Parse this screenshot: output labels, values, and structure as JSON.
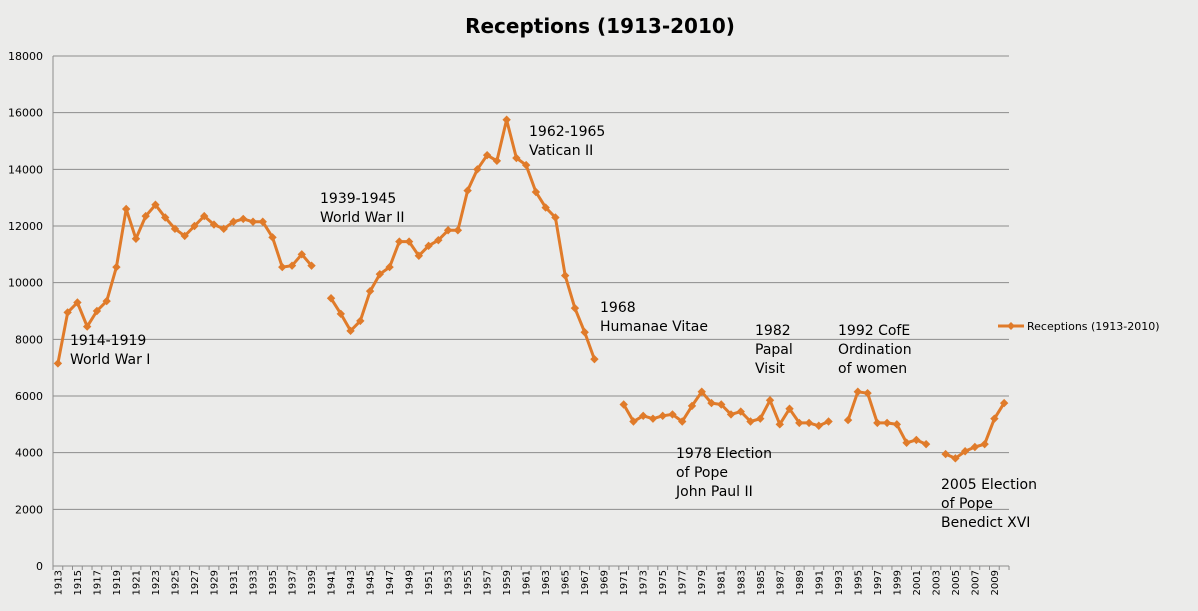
{
  "chart_data": {
    "type": "line",
    "title": "Receptions (1913-2010)",
    "xlabel": "",
    "ylabel": "",
    "ylim": [
      0,
      18000
    ],
    "yticks": [
      0,
      2000,
      4000,
      6000,
      8000,
      10000,
      12000,
      14000,
      16000,
      18000
    ],
    "xlim": [
      1913,
      2010
    ],
    "xtick_labels": [
      1913,
      1915,
      1917,
      1919,
      1921,
      1923,
      1925,
      1927,
      1929,
      1931,
      1933,
      1935,
      1937,
      1939,
      1941,
      1943,
      1945,
      1947,
      1949,
      1951,
      1953,
      1955,
      1957,
      1959,
      1961,
      1963,
      1965,
      1967,
      1969,
      1971,
      1973,
      1975,
      1977,
      1979,
      1981,
      1983,
      1985,
      1987,
      1989,
      1991,
      1993,
      1995,
      1997,
      1999,
      2001,
      2003,
      2005,
      2007,
      2009
    ],
    "grid": true,
    "legend_position": "right",
    "series": [
      {
        "name": "Receptions (1913-2010)",
        "color": "#e07b2a",
        "marker": "diamond",
        "x": [
          1913,
          1914,
          1915,
          1916,
          1917,
          1918,
          1919,
          1920,
          1921,
          1922,
          1923,
          1924,
          1925,
          1926,
          1927,
          1928,
          1929,
          1930,
          1931,
          1932,
          1933,
          1934,
          1935,
          1936,
          1937,
          1938,
          1939,
          1940,
          1941,
          1942,
          1943,
          1944,
          1945,
          1946,
          1947,
          1948,
          1949,
          1950,
          1951,
          1952,
          1953,
          1954,
          1955,
          1956,
          1957,
          1958,
          1959,
          1960,
          1961,
          1962,
          1963,
          1964,
          1965,
          1966,
          1967,
          1968,
          1969,
          1970,
          1971,
          1972,
          1973,
          1974,
          1975,
          1976,
          1977,
          1978,
          1979,
          1980,
          1981,
          1982,
          1983,
          1984,
          1985,
          1986,
          1987,
          1988,
          1989,
          1990,
          1991,
          1992,
          1993,
          1994,
          1995,
          1996,
          1997,
          1998,
          1999,
          2000,
          2001,
          2002,
          2003,
          2004,
          2005,
          2006,
          2007,
          2008,
          2009,
          2010
        ],
        "values": [
          7150,
          8950,
          9300,
          8450,
          9000,
          9350,
          10550,
          12600,
          11550,
          12350,
          12750,
          12300,
          11900,
          11650,
          12000,
          12350,
          12050,
          11900,
          12150,
          12250,
          12150,
          12150,
          11600,
          10550,
          10600,
          11000,
          10600,
          null,
          9450,
          8900,
          8300,
          8650,
          9700,
          10300,
          10550,
          11450,
          11450,
          10950,
          11300,
          11500,
          11850,
          11850,
          13250,
          14000,
          14500,
          14300,
          15750,
          14400,
          14150,
          13200,
          12650,
          12300,
          10250,
          9100,
          8250,
          7300,
          null,
          null,
          5700,
          5100,
          5300,
          5200,
          5300,
          5350,
          5100,
          5650,
          6150,
          5750,
          5700,
          5350,
          5450,
          5100,
          5200,
          5850,
          5000,
          5550,
          5050,
          5050,
          4950,
          5100,
          null,
          5150,
          6150,
          6100,
          5050,
          5050,
          5000,
          4350,
          4450,
          4300,
          null,
          3950,
          3800,
          4050,
          4200,
          4300,
          5200,
          5750
        ]
      }
    ],
    "annotations": [
      {
        "lines": [
          "1914-1919",
          "World War I"
        ]
      },
      {
        "lines": [
          "1939-1945",
          "World War II"
        ]
      },
      {
        "lines": [
          "1962-1965",
          "Vatican II"
        ]
      },
      {
        "lines": [
          "1968",
          "Humanae Vitae"
        ]
      },
      {
        "lines": [
          "1978 Election",
          "of Pope",
          "John Paul II"
        ]
      },
      {
        "lines": [
          "1982",
          "Papal",
          "Visit"
        ]
      },
      {
        "lines": [
          "1992 CofE",
          "Ordination",
          "of women"
        ]
      },
      {
        "lines": [
          "2005 Election",
          "of Pope",
          "Benedict XVI"
        ]
      }
    ]
  }
}
